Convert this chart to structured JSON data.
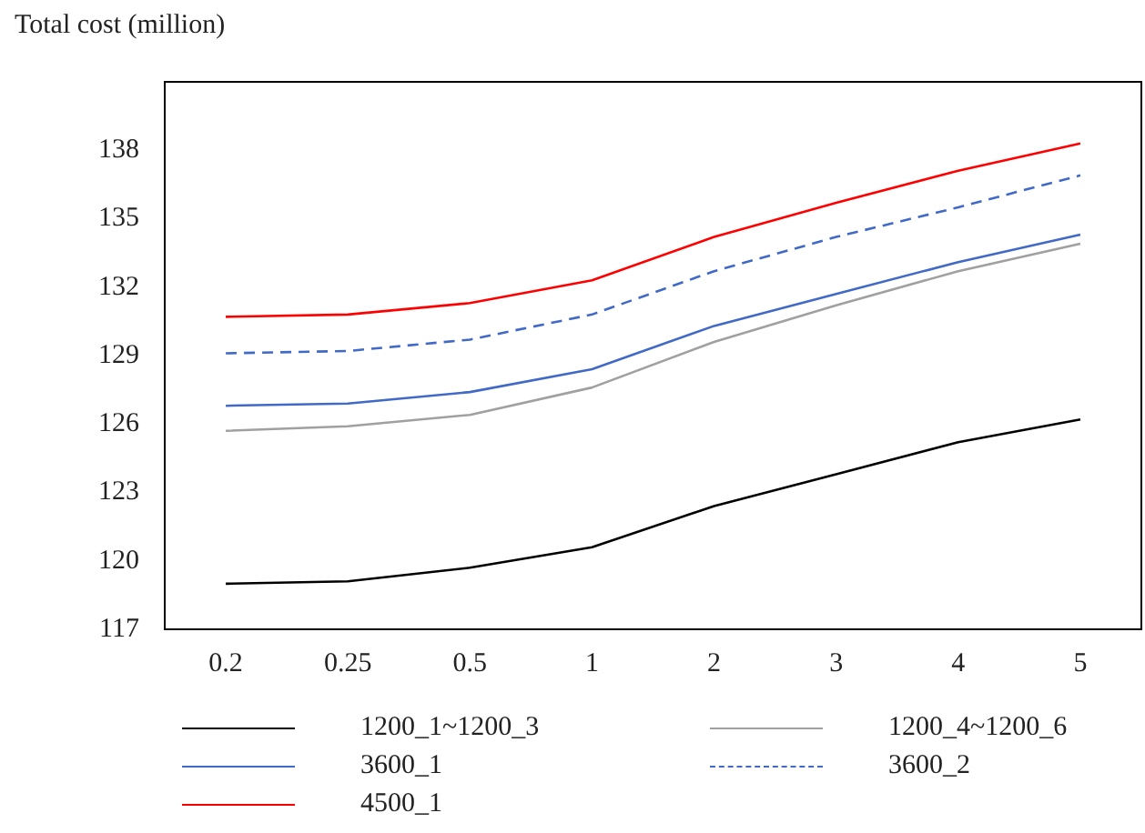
{
  "chart_data": {
    "type": "line",
    "ylabel": "Total cost (million)",
    "categories": [
      "0.2",
      "0.25",
      "0.5",
      "1",
      "2",
      "3",
      "4",
      "5"
    ],
    "series": [
      {
        "name": "1200_1~1200_3",
        "color": "#000000",
        "values": [
          119.0,
          119.1,
          119.7,
          120.6,
          122.4,
          123.8,
          125.2,
          126.2
        ]
      },
      {
        "name": "1200_4~1200_6",
        "color": "#a0a0a0",
        "values": [
          125.7,
          125.9,
          126.4,
          127.6,
          129.6,
          131.2,
          132.7,
          133.9
        ]
      },
      {
        "name": "3600_1",
        "color": "#4169c8",
        "values": [
          126.8,
          126.9,
          127.4,
          128.4,
          130.3,
          131.7,
          133.1,
          134.3
        ]
      },
      {
        "name": "3600_2",
        "color": "#4169c8",
        "line_style": "dashed",
        "values": [
          129.1,
          129.2,
          129.7,
          130.8,
          132.7,
          134.2,
          135.5,
          136.9
        ]
      },
      {
        "name": "4500_1",
        "color": "#ff0000",
        "values": [
          130.7,
          130.8,
          131.3,
          132.3,
          134.2,
          135.7,
          137.1,
          138.3
        ]
      }
    ],
    "ylim": [
      117,
      141
    ],
    "yticks": [
      117,
      120,
      123,
      126,
      129,
      132,
      135,
      138
    ],
    "grid": false,
    "legend": "bottom",
    "marker": "none"
  }
}
